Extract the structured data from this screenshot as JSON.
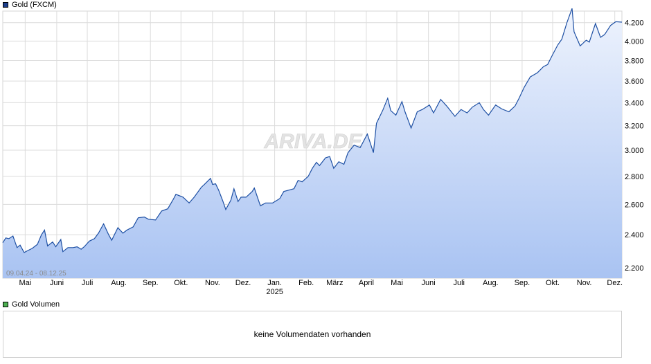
{
  "colors": {
    "line": "#1d4fa3",
    "fill_top": "#eef3fd",
    "fill_bottom": "#a9c3f2",
    "grid": "#dcdcdc",
    "price_swatch": "#1d3f8c",
    "volume_swatch": "#4caf50",
    "watermark": "#e6e6e6"
  },
  "legend": {
    "price": "Gold (FXCM)",
    "volume": "Gold Volumen"
  },
  "date_range": "09.04.24 - 08.12.25",
  "watermark": "ARIVA.DE",
  "volume_panel": {
    "message": "keine Volumendaten vorhanden"
  },
  "chart_data": {
    "type": "area",
    "title": "Gold (FXCM)",
    "x_range": [
      "2024-04-09",
      "2025-12-08"
    ],
    "y_scale": "log",
    "ylim": [
      2140,
      4330
    ],
    "grid": true,
    "y_ticks": [
      2200,
      2400,
      2600,
      2800,
      3000,
      3200,
      3400,
      3600,
      3800,
      4000,
      4200
    ],
    "y_tick_labels": [
      "2.200",
      "2.400",
      "2.600",
      "2.800",
      "3.000",
      "3.200",
      "3.400",
      "3.600",
      "3.800",
      "4.000",
      "4.200"
    ],
    "x_ticks": [
      {
        "date": "2024-05-01",
        "label": "Mai"
      },
      {
        "date": "2024-06-01",
        "label": "Juni"
      },
      {
        "date": "2024-07-01",
        "label": "Juli"
      },
      {
        "date": "2024-08-01",
        "label": "Aug."
      },
      {
        "date": "2024-09-01",
        "label": "Sep."
      },
      {
        "date": "2024-10-01",
        "label": "Okt."
      },
      {
        "date": "2024-11-01",
        "label": "Nov."
      },
      {
        "date": "2024-12-01",
        "label": "Dez."
      },
      {
        "date": "2025-01-01",
        "label": "Jan.",
        "year": "2025"
      },
      {
        "date": "2025-02-01",
        "label": "Feb."
      },
      {
        "date": "2025-03-01",
        "label": "März"
      },
      {
        "date": "2025-04-01",
        "label": "April"
      },
      {
        "date": "2025-05-01",
        "label": "Mai"
      },
      {
        "date": "2025-06-01",
        "label": "Juni"
      },
      {
        "date": "2025-07-01",
        "label": "Juli"
      },
      {
        "date": "2025-08-01",
        "label": "Aug."
      },
      {
        "date": "2025-09-01",
        "label": "Sep."
      },
      {
        "date": "2025-10-01",
        "label": "Okt."
      },
      {
        "date": "2025-11-01",
        "label": "Nov."
      },
      {
        "date": "2025-12-01",
        "label": "Dez."
      }
    ],
    "series": [
      {
        "values": [
          [
            "2024-04-09",
            2350
          ],
          [
            "2024-04-12",
            2380
          ],
          [
            "2024-04-15",
            2375
          ],
          [
            "2024-04-19",
            2392
          ],
          [
            "2024-04-23",
            2320
          ],
          [
            "2024-04-26",
            2335
          ],
          [
            "2024-04-30",
            2290
          ],
          [
            "2024-05-03",
            2300
          ],
          [
            "2024-05-08",
            2315
          ],
          [
            "2024-05-13",
            2340
          ],
          [
            "2024-05-17",
            2400
          ],
          [
            "2024-05-20",
            2430
          ],
          [
            "2024-05-23",
            2330
          ],
          [
            "2024-05-28",
            2355
          ],
          [
            "2024-05-31",
            2325
          ],
          [
            "2024-06-05",
            2370
          ],
          [
            "2024-06-07",
            2295
          ],
          [
            "2024-06-12",
            2320
          ],
          [
            "2024-06-17",
            2320
          ],
          [
            "2024-06-21",
            2325
          ],
          [
            "2024-06-25",
            2310
          ],
          [
            "2024-06-28",
            2325
          ],
          [
            "2024-07-03",
            2360
          ],
          [
            "2024-07-08",
            2375
          ],
          [
            "2024-07-12",
            2410
          ],
          [
            "2024-07-17",
            2470
          ],
          [
            "2024-07-22",
            2400
          ],
          [
            "2024-07-25",
            2365
          ],
          [
            "2024-07-31",
            2445
          ],
          [
            "2024-08-05",
            2410
          ],
          [
            "2024-08-09",
            2430
          ],
          [
            "2024-08-15",
            2450
          ],
          [
            "2024-08-20",
            2510
          ],
          [
            "2024-08-26",
            2515
          ],
          [
            "2024-08-30",
            2500
          ],
          [
            "2024-09-06",
            2495
          ],
          [
            "2024-09-12",
            2555
          ],
          [
            "2024-09-18",
            2570
          ],
          [
            "2024-09-23",
            2630
          ],
          [
            "2024-09-26",
            2670
          ],
          [
            "2024-10-03",
            2650
          ],
          [
            "2024-10-09",
            2610
          ],
          [
            "2024-10-14",
            2650
          ],
          [
            "2024-10-21",
            2720
          ],
          [
            "2024-10-24",
            2740
          ],
          [
            "2024-10-30",
            2785
          ],
          [
            "2024-11-01",
            2740
          ],
          [
            "2024-11-04",
            2745
          ],
          [
            "2024-11-07",
            2700
          ],
          [
            "2024-11-11",
            2625
          ],
          [
            "2024-11-14",
            2565
          ],
          [
            "2024-11-19",
            2630
          ],
          [
            "2024-11-22",
            2710
          ],
          [
            "2024-11-26",
            2620
          ],
          [
            "2024-11-29",
            2650
          ],
          [
            "2024-12-04",
            2650
          ],
          [
            "2024-12-10",
            2690
          ],
          [
            "2024-12-12",
            2715
          ],
          [
            "2024-12-18",
            2590
          ],
          [
            "2024-12-23",
            2610
          ],
          [
            "2024-12-30",
            2610
          ],
          [
            "2025-01-06",
            2640
          ],
          [
            "2025-01-10",
            2690
          ],
          [
            "2025-01-15",
            2700
          ],
          [
            "2025-01-20",
            2710
          ],
          [
            "2025-01-24",
            2770
          ],
          [
            "2025-01-28",
            2760
          ],
          [
            "2025-02-03",
            2800
          ],
          [
            "2025-02-07",
            2860
          ],
          [
            "2025-02-11",
            2905
          ],
          [
            "2025-02-14",
            2880
          ],
          [
            "2025-02-20",
            2940
          ],
          [
            "2025-02-24",
            2950
          ],
          [
            "2025-02-28",
            2860
          ],
          [
            "2025-03-05",
            2910
          ],
          [
            "2025-03-10",
            2890
          ],
          [
            "2025-03-14",
            2980
          ],
          [
            "2025-03-20",
            3040
          ],
          [
            "2025-03-26",
            3020
          ],
          [
            "2025-04-02",
            3130
          ],
          [
            "2025-04-08",
            2980
          ],
          [
            "2025-04-11",
            3220
          ],
          [
            "2025-04-17",
            3330
          ],
          [
            "2025-04-22",
            3440
          ],
          [
            "2025-04-25",
            3330
          ],
          [
            "2025-04-30",
            3290
          ],
          [
            "2025-05-06",
            3410
          ],
          [
            "2025-05-09",
            3320
          ],
          [
            "2025-05-15",
            3180
          ],
          [
            "2025-05-21",
            3320
          ],
          [
            "2025-05-26",
            3340
          ],
          [
            "2025-06-02",
            3380
          ],
          [
            "2025-06-06",
            3310
          ],
          [
            "2025-06-13",
            3430
          ],
          [
            "2025-06-19",
            3370
          ],
          [
            "2025-06-27",
            3280
          ],
          [
            "2025-07-03",
            3340
          ],
          [
            "2025-07-09",
            3310
          ],
          [
            "2025-07-14",
            3360
          ],
          [
            "2025-07-21",
            3400
          ],
          [
            "2025-07-25",
            3340
          ],
          [
            "2025-07-30",
            3290
          ],
          [
            "2025-08-06",
            3380
          ],
          [
            "2025-08-12",
            3345
          ],
          [
            "2025-08-19",
            3320
          ],
          [
            "2025-08-25",
            3370
          ],
          [
            "2025-08-29",
            3440
          ],
          [
            "2025-09-03",
            3540
          ],
          [
            "2025-09-09",
            3640
          ],
          [
            "2025-09-16",
            3680
          ],
          [
            "2025-09-22",
            3740
          ],
          [
            "2025-09-26",
            3760
          ],
          [
            "2025-10-01",
            3860
          ],
          [
            "2025-10-06",
            3960
          ],
          [
            "2025-10-10",
            4020
          ],
          [
            "2025-10-15",
            4200
          ],
          [
            "2025-10-20",
            4360
          ],
          [
            "2025-10-22",
            4100
          ],
          [
            "2025-10-28",
            3950
          ],
          [
            "2025-11-03",
            4010
          ],
          [
            "2025-11-06",
            3990
          ],
          [
            "2025-11-12",
            4190
          ],
          [
            "2025-11-17",
            4040
          ],
          [
            "2025-11-21",
            4070
          ],
          [
            "2025-11-27",
            4170
          ],
          [
            "2025-12-02",
            4210
          ],
          [
            "2025-12-08",
            4205
          ]
        ]
      }
    ]
  }
}
